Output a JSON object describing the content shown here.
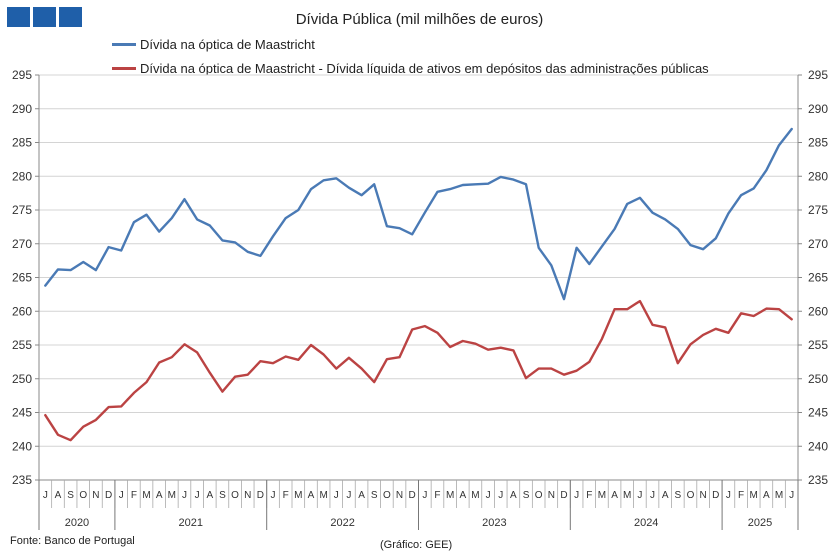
{
  "title": "Dívida Pública (mil milhões de euros)",
  "source": "Fonte: Banco de Portugal",
  "credit": "(Gráfico: GEE)",
  "chart_data": {
    "type": "line",
    "title": "Dívida Pública (mil milhões de euros)",
    "ylim": [
      235,
      295
    ],
    "yticks": [
      235,
      240,
      245,
      250,
      255,
      260,
      265,
      270,
      275,
      280,
      285,
      290,
      295
    ],
    "y_axis_both_sides": true,
    "grid": "horizontal",
    "legend_position": "top",
    "month_labels": [
      "J",
      "A",
      "S",
      "O",
      "N",
      "D",
      "J",
      "F",
      "M",
      "A",
      "M",
      "J",
      "J",
      "A",
      "S",
      "O",
      "N",
      "D",
      "J",
      "F",
      "M",
      "A",
      "M",
      "J",
      "J",
      "A",
      "S",
      "O",
      "N",
      "D",
      "J",
      "F",
      "M",
      "A",
      "M",
      "J",
      "J",
      "A",
      "S",
      "O",
      "N",
      "D",
      "J",
      "F",
      "M",
      "A",
      "M",
      "J",
      "J",
      "A",
      "S",
      "O",
      "N",
      "D",
      "J",
      "F",
      "M",
      "A",
      "M",
      "J"
    ],
    "year_groups": [
      {
        "label": "2020",
        "count": 6
      },
      {
        "label": "2021",
        "count": 12
      },
      {
        "label": "2022",
        "count": 12
      },
      {
        "label": "2023",
        "count": 12
      },
      {
        "label": "2024",
        "count": 12
      },
      {
        "label": "2025",
        "count": 6
      }
    ],
    "series": [
      {
        "name": "Dívida na óptica de Maastricht",
        "color": "#4a7ab5",
        "values": [
          263.8,
          266.2,
          266.1,
          267.3,
          266.1,
          269.5,
          269.0,
          273.2,
          274.3,
          271.8,
          273.8,
          276.6,
          273.6,
          272.7,
          270.5,
          270.2,
          268.8,
          268.2,
          271.1,
          273.8,
          275.0,
          278.1,
          279.4,
          279.7,
          278.3,
          277.2,
          278.8,
          272.6,
          272.3,
          271.4,
          274.6,
          277.7,
          278.1,
          278.7,
          278.8,
          278.9,
          279.9,
          279.5,
          278.8,
          269.4,
          266.8,
          261.8,
          269.4,
          267.0,
          269.6,
          272.2,
          275.9,
          276.8,
          274.6,
          273.6,
          272.2,
          269.8,
          269.2,
          270.8,
          274.5,
          277.2,
          278.2,
          280.9,
          284.6,
          287.0
        ]
      },
      {
        "name": "Dívida na óptica de Maastricht - Dívida líquida de ativos em depósitos das administrações públicas",
        "color": "#bb4343",
        "values": [
          244.6,
          241.7,
          240.9,
          242.9,
          243.9,
          245.8,
          245.9,
          247.9,
          249.5,
          252.4,
          253.2,
          255.1,
          253.9,
          250.9,
          248.1,
          250.3,
          250.6,
          252.6,
          252.3,
          253.3,
          252.8,
          255.0,
          253.6,
          251.5,
          253.1,
          251.5,
          249.5,
          252.9,
          253.2,
          257.3,
          257.8,
          256.8,
          254.7,
          255.6,
          255.2,
          254.3,
          254.6,
          254.2,
          250.1,
          251.5,
          251.5,
          250.6,
          251.2,
          252.5,
          255.9,
          260.3,
          260.3,
          261.5,
          258.0,
          257.6,
          252.3,
          255.1,
          256.5,
          257.4,
          256.8,
          259.7,
          259.3,
          260.4,
          260.3,
          258.8
        ]
      }
    ]
  }
}
